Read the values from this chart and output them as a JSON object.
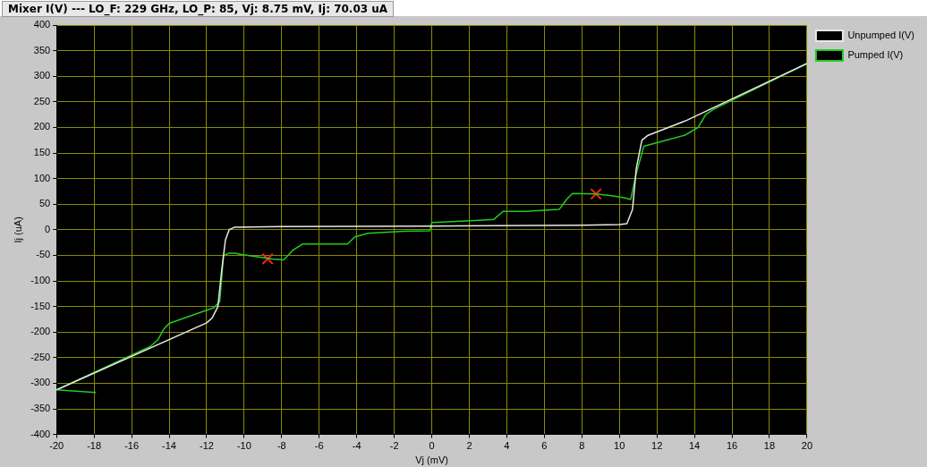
{
  "chart_data": {
    "type": "line",
    "title": "Mixer I(V) ---  LO_F: 229 GHz, LO_P: 85, Vj: 8.75 mV, Ij: 70.03 uA",
    "xlabel": "Vj (mV)",
    "ylabel": "Ij (uA)",
    "xlim": [
      -20,
      20
    ],
    "xticks": [
      -20,
      -18,
      -16,
      -14,
      -12,
      -10,
      -8,
      -6,
      -4,
      -2,
      0,
      2,
      4,
      6,
      8,
      10,
      12,
      14,
      16,
      18,
      20
    ],
    "ylim": [
      -400,
      400
    ],
    "yticks": [
      -400,
      -350,
      -300,
      -250,
      -200,
      -150,
      -100,
      -50,
      0,
      50,
      100,
      150,
      200,
      250,
      300,
      350,
      400
    ],
    "grid": true,
    "legend": "top right",
    "marker": "none",
    "line_style": "solid",
    "series": [
      {
        "name": "Unpumped I(V)",
        "color": "#e8e8e8",
        "x": [
          -20,
          -12,
          -11.7,
          -11.4,
          -11.2,
          -11,
          -10.8,
          -10.5,
          -8,
          0,
          8,
          10,
          10.4,
          10.7,
          10.9,
          11.2,
          11.5,
          13.6,
          20
        ],
        "values": [
          -313,
          -182,
          -172,
          -150,
          -80,
          -20,
          0,
          5,
          6,
          7,
          9,
          10,
          12,
          40,
          120,
          175,
          184,
          214,
          325
        ]
      },
      {
        "name": "Pumped I(V)",
        "color": "#22cc22",
        "x": [
          -17.9,
          -20,
          -15,
          -14.6,
          -14.3,
          -14,
          -11.6,
          -11.3,
          -11.1,
          -10.8,
          -10.5,
          -10.2,
          -9.8,
          -8.5,
          -7.9,
          -7.4,
          -6.9,
          -4.5,
          -4.1,
          -3.4,
          -1.5,
          -0.1,
          0,
          2.3,
          3.3,
          3.8,
          5,
          6.8,
          7.2,
          7.5,
          8.75,
          9.5,
          10.3,
          10.6,
          10.9,
          11.3,
          12,
          13.5,
          14.2,
          14.6,
          15,
          20
        ],
        "values": [
          -318,
          -313,
          -228,
          -215,
          -195,
          -183,
          -152,
          -140,
          -50,
          -46,
          -46,
          -48,
          -50,
          -57,
          -59,
          -40,
          -28,
          -28,
          -14,
          -7,
          -3,
          -2,
          14,
          18,
          20,
          36,
          36,
          40,
          60,
          71,
          70,
          67,
          62,
          59,
          110,
          163,
          170,
          185,
          200,
          225,
          235,
          325
        ]
      },
      {
        "type": "scatter",
        "color": "#ff2020",
        "marker": "cross",
        "x": [
          -8.75,
          8.75
        ],
        "values": [
          -57,
          70
        ]
      }
    ]
  }
}
